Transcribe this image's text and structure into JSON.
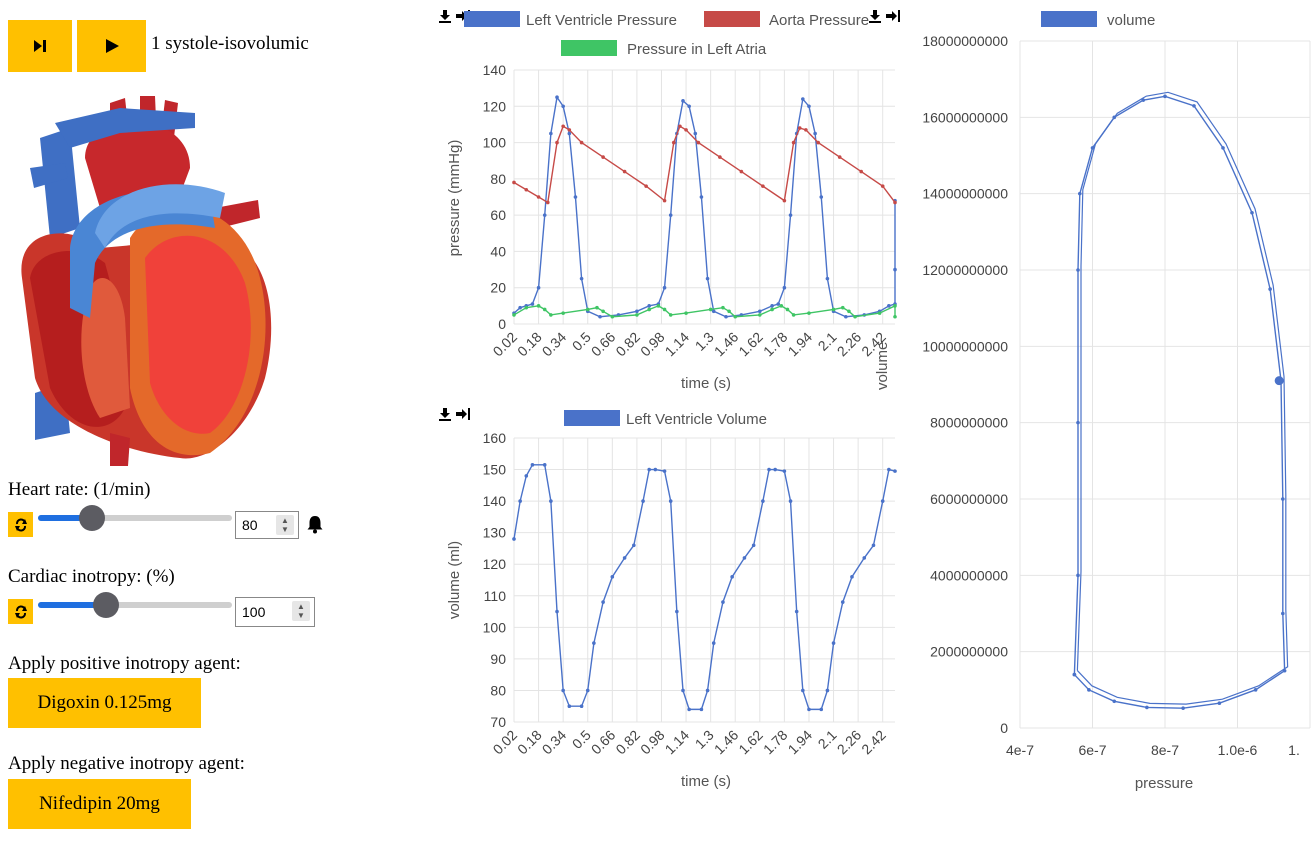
{
  "controls": {
    "step_icon": "step-forward-icon",
    "play_icon": "play-icon",
    "phase_label": "1 systole-isovolumic"
  },
  "heart_rate": {
    "label": "Heart rate: (1/min)",
    "value": "80",
    "slider_fraction": 0.27,
    "reset_icon": "refresh-icon",
    "alarm_icon": "bell-icon"
  },
  "inotropy": {
    "label": "Cardiac inotropy: (%)",
    "value": "100",
    "slider_fraction": 0.33,
    "reset_icon": "refresh-icon"
  },
  "positive_agent": {
    "label": "Apply positive inotropy agent:",
    "button": "Digoxin 0.125mg"
  },
  "negative_agent": {
    "label": "Apply negative inotropy agent:",
    "button": "Nifedipin 20mg"
  },
  "colors": {
    "accent": "#ffc000",
    "blue": "#4a72c9",
    "red": "#c64a47",
    "green": "#3fc565"
  },
  "chart_data": [
    {
      "type": "line",
      "name": "pressure-chart",
      "series": [
        {
          "name": "Left Ventricle Pressure",
          "color": "#4a72c9"
        },
        {
          "name": "Aorta Pressure",
          "color": "#c64a47"
        },
        {
          "name": "Pressure in Left Atria",
          "color": "#3fc565"
        }
      ],
      "xlabel": "time (s)",
      "ylabel": "pressure (mmHg)",
      "ylim": [
        0,
        140
      ],
      "yticks": [
        "140",
        "120",
        "100",
        "80",
        "60",
        "40",
        "20",
        "0"
      ],
      "xticks": [
        "0.02",
        "0.18",
        "0.34",
        "0.5",
        "0.66",
        "0.82",
        "0.98",
        "1.14",
        "1.3",
        "1.46",
        "1.62",
        "1.78",
        "1.94",
        "2.1",
        "2.26",
        "2.42"
      ],
      "xlim": [
        0.02,
        2.5
      ],
      "lv": [
        [
          0.02,
          6
        ],
        [
          0.06,
          9
        ],
        [
          0.1,
          10
        ],
        [
          0.14,
          11
        ],
        [
          0.18,
          20
        ],
        [
          0.22,
          60
        ],
        [
          0.26,
          105
        ],
        [
          0.3,
          125
        ],
        [
          0.34,
          120
        ],
        [
          0.38,
          105
        ],
        [
          0.42,
          70
        ],
        [
          0.46,
          25
        ],
        [
          0.5,
          7
        ],
        [
          0.58,
          4
        ],
        [
          0.7,
          5
        ],
        [
          0.82,
          7
        ],
        [
          0.9,
          10
        ],
        [
          0.96,
          11
        ],
        [
          1.0,
          20
        ],
        [
          1.04,
          60
        ],
        [
          1.08,
          105
        ],
        [
          1.12,
          123
        ],
        [
          1.16,
          120
        ],
        [
          1.2,
          105
        ],
        [
          1.24,
          70
        ],
        [
          1.28,
          25
        ],
        [
          1.32,
          7
        ],
        [
          1.4,
          4
        ],
        [
          1.5,
          5
        ],
        [
          1.62,
          7
        ],
        [
          1.7,
          10
        ],
        [
          1.74,
          11
        ],
        [
          1.78,
          20
        ],
        [
          1.82,
          60
        ],
        [
          1.86,
          105
        ],
        [
          1.9,
          124
        ],
        [
          1.94,
          120
        ],
        [
          1.98,
          105
        ],
        [
          2.02,
          70
        ],
        [
          2.06,
          25
        ],
        [
          2.1,
          7
        ],
        [
          2.18,
          4
        ],
        [
          2.3,
          5
        ],
        [
          2.4,
          7
        ],
        [
          2.46,
          10
        ],
        [
          2.5,
          11
        ],
        [
          2.52,
          30
        ],
        [
          2.55,
          68
        ]
      ],
      "ao": [
        [
          0.02,
          78
        ],
        [
          0.1,
          74
        ],
        [
          0.18,
          70
        ],
        [
          0.24,
          67
        ],
        [
          0.3,
          100
        ],
        [
          0.34,
          109
        ],
        [
          0.38,
          107
        ],
        [
          0.46,
          100
        ],
        [
          0.6,
          92
        ],
        [
          0.74,
          84
        ],
        [
          0.88,
          76
        ],
        [
          1.0,
          68
        ],
        [
          1.06,
          100
        ],
        [
          1.1,
          109
        ],
        [
          1.14,
          107
        ],
        [
          1.22,
          100
        ],
        [
          1.36,
          92
        ],
        [
          1.5,
          84
        ],
        [
          1.64,
          76
        ],
        [
          1.78,
          68
        ],
        [
          1.84,
          100
        ],
        [
          1.88,
          108
        ],
        [
          1.92,
          107
        ],
        [
          2.0,
          100
        ],
        [
          2.14,
          92
        ],
        [
          2.28,
          84
        ],
        [
          2.42,
          76
        ],
        [
          2.55,
          67
        ]
      ],
      "la": [
        [
          0.02,
          5
        ],
        [
          0.1,
          9
        ],
        [
          0.18,
          10
        ],
        [
          0.22,
          8
        ],
        [
          0.26,
          5
        ],
        [
          0.34,
          6
        ],
        [
          0.5,
          8
        ],
        [
          0.56,
          9
        ],
        [
          0.6,
          7
        ],
        [
          0.66,
          4
        ],
        [
          0.82,
          5
        ],
        [
          0.9,
          8
        ],
        [
          0.96,
          10
        ],
        [
          1.0,
          8
        ],
        [
          1.04,
          5
        ],
        [
          1.14,
          6
        ],
        [
          1.3,
          8
        ],
        [
          1.38,
          9
        ],
        [
          1.42,
          7
        ],
        [
          1.46,
          4
        ],
        [
          1.62,
          5
        ],
        [
          1.7,
          8
        ],
        [
          1.76,
          10
        ],
        [
          1.8,
          8
        ],
        [
          1.84,
          5
        ],
        [
          1.94,
          6
        ],
        [
          2.1,
          8
        ],
        [
          2.16,
          9
        ],
        [
          2.2,
          7
        ],
        [
          2.24,
          4
        ],
        [
          2.4,
          6
        ],
        [
          2.5,
          10
        ],
        [
          2.55,
          4
        ]
      ]
    },
    {
      "type": "line",
      "name": "volume-chart",
      "series": [
        {
          "name": "Left Ventricle Volume",
          "color": "#4a72c9"
        }
      ],
      "xlabel": "time (s)",
      "ylabel": "volume (ml)",
      "ylim": [
        70,
        160
      ],
      "yticks": [
        "160",
        "150",
        "140",
        "130",
        "120",
        "110",
        "100",
        "90",
        "80",
        "70"
      ],
      "xticks": [
        "0.02",
        "0.18",
        "0.34",
        "0.5",
        "0.66",
        "0.82",
        "0.98",
        "1.14",
        "1.3",
        "1.46",
        "1.62",
        "1.78",
        "1.94",
        "2.1",
        "2.26",
        "2.42"
      ],
      "xlim": [
        0.02,
        2.5
      ],
      "points": [
        [
          0.02,
          128
        ],
        [
          0.06,
          140
        ],
        [
          0.1,
          148
        ],
        [
          0.14,
          151.5
        ],
        [
          0.22,
          151.5
        ],
        [
          0.26,
          140
        ],
        [
          0.3,
          105
        ],
        [
          0.34,
          80
        ],
        [
          0.38,
          75
        ],
        [
          0.46,
          75
        ],
        [
          0.5,
          80
        ],
        [
          0.54,
          95
        ],
        [
          0.6,
          108
        ],
        [
          0.66,
          116
        ],
        [
          0.74,
          122
        ],
        [
          0.8,
          126
        ],
        [
          0.86,
          140
        ],
        [
          0.9,
          150
        ],
        [
          0.94,
          150
        ],
        [
          1.0,
          149.5
        ],
        [
          1.04,
          140
        ],
        [
          1.08,
          105
        ],
        [
          1.12,
          80
        ],
        [
          1.16,
          74
        ],
        [
          1.24,
          74
        ],
        [
          1.28,
          80
        ],
        [
          1.32,
          95
        ],
        [
          1.38,
          108
        ],
        [
          1.44,
          116
        ],
        [
          1.52,
          122
        ],
        [
          1.58,
          126
        ],
        [
          1.64,
          140
        ],
        [
          1.68,
          150
        ],
        [
          1.72,
          150
        ],
        [
          1.78,
          149.5
        ],
        [
          1.82,
          140
        ],
        [
          1.86,
          105
        ],
        [
          1.9,
          80
        ],
        [
          1.94,
          74
        ],
        [
          2.02,
          74
        ],
        [
          2.06,
          80
        ],
        [
          2.1,
          95
        ],
        [
          2.16,
          108
        ],
        [
          2.22,
          116
        ],
        [
          2.3,
          122
        ],
        [
          2.36,
          126
        ],
        [
          2.42,
          140
        ],
        [
          2.46,
          150
        ],
        [
          2.55,
          149.5
        ]
      ]
    },
    {
      "type": "line",
      "name": "pv-loop-chart",
      "series": [
        {
          "name": "volume",
          "color": "#4a72c9"
        }
      ],
      "xlabel": "pressure",
      "ylabel": "volume",
      "xlim": [
        4e-07,
        1.2e-06
      ],
      "ylim": [
        0,
        18000000000
      ],
      "xticks": [
        "4e-7",
        "6e-7",
        "8e-7",
        "1.0e-6",
        "1."
      ],
      "yticks": [
        "18000000000",
        "16000000000",
        "14000000000",
        "12000000000",
        "10000000000",
        "8000000000",
        "6000000000",
        "4000000000",
        "2000000000",
        "0"
      ],
      "points": [
        [
          5.5e-07,
          1400000000
        ],
        [
          5.6e-07,
          4000000000
        ],
        [
          5.6e-07,
          8000000000
        ],
        [
          5.6e-07,
          12000000000
        ],
        [
          5.65e-07,
          14000000000
        ],
        [
          6e-07,
          15200000000
        ],
        [
          6.6e-07,
          16000000000
        ],
        [
          7.4e-07,
          16450000000
        ],
        [
          8e-07,
          16550000000
        ],
        [
          8.8e-07,
          16300000000
        ],
        [
          9.6e-07,
          15200000000
        ],
        [
          1.04e-06,
          13500000000
        ],
        [
          1.09e-06,
          11500000000
        ],
        [
          1.12e-06,
          9100000000
        ],
        [
          1.125e-06,
          6000000000
        ],
        [
          1.125e-06,
          3000000000
        ],
        [
          1.13e-06,
          1500000000
        ],
        [
          1.05e-06,
          1000000000
        ],
        [
          9.5e-07,
          650000000
        ],
        [
          8.5e-07,
          520000000
        ],
        [
          7.5e-07,
          540000000
        ],
        [
          6.6e-07,
          700000000
        ],
        [
          5.9e-07,
          1000000000
        ],
        [
          5.5e-07,
          1400000000
        ]
      ],
      "marker": [
        1.115e-06,
        9100000000
      ]
    }
  ]
}
